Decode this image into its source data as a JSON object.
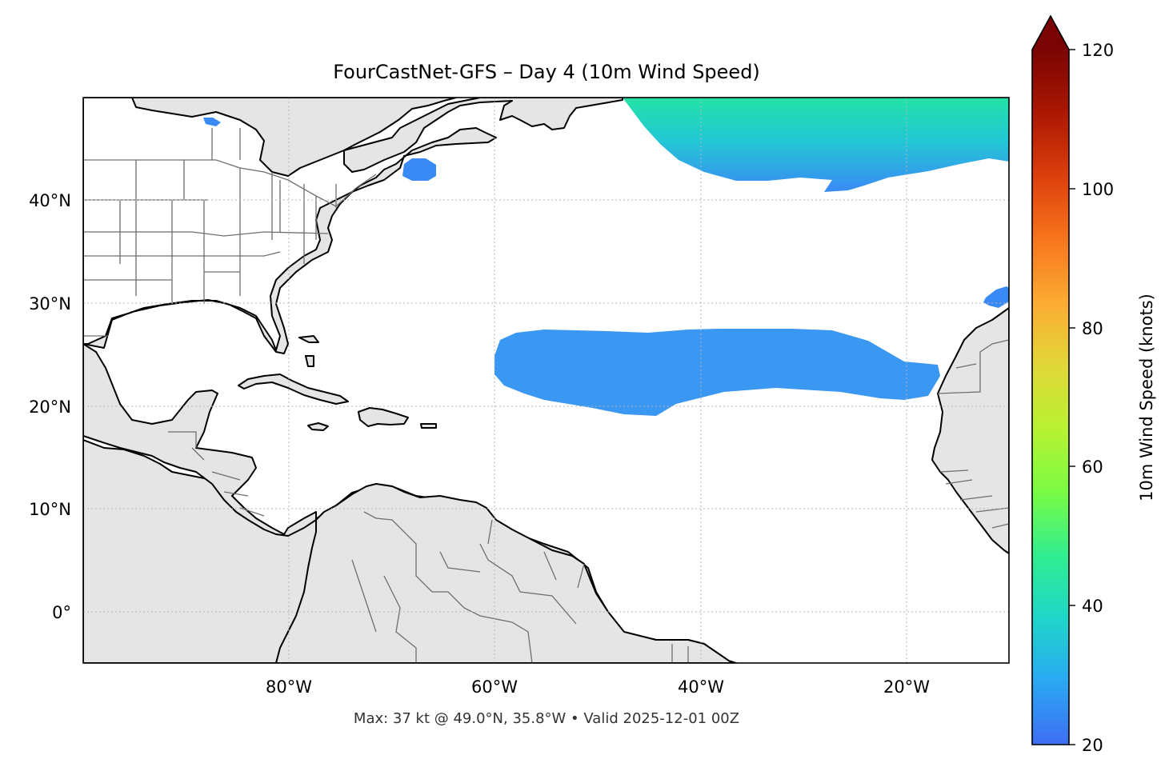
{
  "title": "FourCastNet-GFS – Day 4 (10m Wind Speed)",
  "footer": "Max: 37 kt @ 49.0°N, 35.8°W • Valid 2025-12-01 00Z",
  "map": {
    "lon_range": [
      -100,
      -10
    ],
    "lat_range": [
      -5,
      50
    ],
    "lat_ticks": [
      {
        "value": 40,
        "label": "40°N"
      },
      {
        "value": 30,
        "label": "30°N"
      },
      {
        "value": 20,
        "label": "20°N"
      },
      {
        "value": 10,
        "label": "10°N"
      },
      {
        "value": 0,
        "label": "0°"
      }
    ],
    "lon_ticks": [
      {
        "value": -80,
        "label": "80°W"
      },
      {
        "value": -60,
        "label": "60°W"
      },
      {
        "value": -40,
        "label": "40°W"
      },
      {
        "value": -20,
        "label": "20°W"
      }
    ],
    "gridlines": true,
    "land_color": "#e5e5e5",
    "coastline_color": "#000000",
    "border_color": "#6e6e6e",
    "wind_regions_knots": [
      {
        "area": "north-atlantic-high-latitude",
        "min": 20,
        "max": 37
      },
      {
        "area": "subtropical-band",
        "min": 20,
        "max": 25
      },
      {
        "area": "gulf-of-maine",
        "min": 20,
        "max": 22
      },
      {
        "area": "canary-islands",
        "min": 20,
        "max": 22
      }
    ],
    "max_marker": {
      "lat": 49.0,
      "lon": -35.8,
      "value": 37
    }
  },
  "colorbar": {
    "label": "10m Wind Speed (knots)",
    "range": [
      20,
      120
    ],
    "extend": "max",
    "ticks": [
      {
        "value": 20,
        "label": "20"
      },
      {
        "value": 40,
        "label": "40"
      },
      {
        "value": 60,
        "label": "60"
      },
      {
        "value": 80,
        "label": "80"
      },
      {
        "value": 100,
        "label": "100"
      },
      {
        "value": 120,
        "label": "120"
      }
    ],
    "colors": [
      "#3f6df5",
      "#2aa8f2",
      "#1fd6c9",
      "#31ee8f",
      "#7afb43",
      "#b8f232",
      "#e1d738",
      "#fcab33",
      "#f8751d",
      "#dc3f0c",
      "#ab1702",
      "#7a0403"
    ]
  }
}
